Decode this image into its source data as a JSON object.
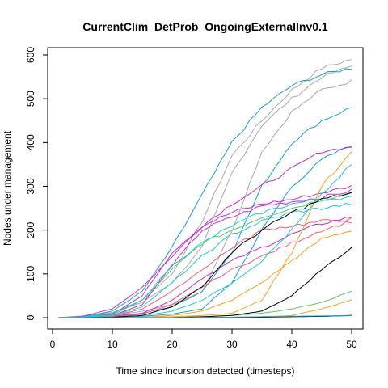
{
  "chart_data": {
    "type": "line",
    "title": "CurrentClim_DetProb_OngoingExternalInv0.1",
    "xlabel": "Time since incursion detected (timesteps)",
    "ylabel": "Nodes under management",
    "xlim": [
      1,
      50
    ],
    "ylim": [
      0,
      600
    ],
    "xticks": [
      0,
      10,
      20,
      30,
      40,
      50
    ],
    "yticks": [
      0,
      100,
      200,
      300,
      400,
      500,
      600
    ],
    "grid": false,
    "legend": "none",
    "x": [
      1,
      5,
      10,
      15,
      20,
      25,
      30,
      35,
      40,
      45,
      50
    ],
    "series": [
      {
        "color": "#aaaaaa",
        "values": [
          0,
          2,
          10,
          40,
          100,
          220,
          370,
          450,
          520,
          570,
          590
        ]
      },
      {
        "color": "#aaaaaa",
        "values": [
          0,
          4,
          12,
          35,
          80,
          160,
          330,
          440,
          500,
          550,
          575
        ]
      },
      {
        "color": "#aaaaaa",
        "values": [
          0,
          1,
          5,
          15,
          30,
          60,
          200,
          380,
          470,
          520,
          540
        ]
      },
      {
        "color": "#1a9fd6",
        "values": [
          0,
          2,
          15,
          60,
          160,
          280,
          400,
          480,
          530,
          555,
          570
        ]
      },
      {
        "color": "#1a9fd6",
        "values": [
          0,
          1,
          4,
          10,
          25,
          60,
          150,
          300,
          400,
          450,
          480
        ]
      },
      {
        "color": "#1a9fd6",
        "values": [
          0,
          0,
          1,
          3,
          8,
          20,
          80,
          200,
          300,
          360,
          395
        ]
      },
      {
        "color": "#cc2bd1",
        "values": [
          0,
          3,
          20,
          70,
          140,
          210,
          260,
          300,
          340,
          380,
          390
        ]
      },
      {
        "color": "#cc2bd1",
        "values": [
          0,
          1,
          8,
          50,
          150,
          210,
          240,
          260,
          270,
          285,
          300
        ]
      },
      {
        "color": "#cc2bd1",
        "values": [
          0,
          1,
          5,
          30,
          120,
          200,
          230,
          255,
          265,
          275,
          290
        ]
      },
      {
        "color": "#cc2bd1",
        "values": [
          0,
          0,
          2,
          10,
          40,
          90,
          130,
          160,
          190,
          215,
          230
        ]
      },
      {
        "color": "#5dc95d",
        "values": [
          0,
          1,
          6,
          40,
          110,
          170,
          200,
          230,
          250,
          270,
          285
        ]
      },
      {
        "color": "#5dc95d",
        "values": [
          0,
          0,
          0,
          0,
          1,
          2,
          5,
          10,
          20,
          35,
          60
        ]
      },
      {
        "color": "#ff9f1c",
        "values": [
          0,
          0,
          0,
          1,
          2,
          5,
          10,
          40,
          150,
          300,
          380
        ]
      },
      {
        "color": "#ff9f1c",
        "values": [
          0,
          0,
          0,
          1,
          5,
          15,
          40,
          80,
          130,
          180,
          200
        ]
      },
      {
        "color": "#ff9f1c",
        "values": [
          0,
          0,
          0,
          0,
          0,
          0,
          1,
          2,
          5,
          20,
          40
        ]
      },
      {
        "color": "#fa5b7a",
        "values": [
          0,
          1,
          4,
          20,
          60,
          110,
          160,
          200,
          210,
          220,
          225
        ]
      },
      {
        "color": "#fa5b7a",
        "values": [
          0,
          0,
          2,
          8,
          30,
          70,
          110,
          140,
          170,
          200,
          220
        ]
      },
      {
        "color": "#1ec8dc",
        "values": [
          0,
          2,
          10,
          40,
          120,
          170,
          210,
          240,
          260,
          270,
          275
        ]
      },
      {
        "color": "#1ec8dc",
        "values": [
          0,
          1,
          5,
          25,
          80,
          140,
          190,
          220,
          240,
          250,
          260
        ]
      },
      {
        "color": "#1ec8dc",
        "values": [
          0,
          0,
          1,
          4,
          15,
          40,
          80,
          130,
          200,
          280,
          350
        ]
      },
      {
        "color": "#000000",
        "values": [
          0,
          0,
          1,
          5,
          25,
          70,
          150,
          200,
          240,
          270,
          285
        ]
      },
      {
        "color": "#000000",
        "values": [
          0,
          0,
          0,
          0,
          0,
          2,
          5,
          15,
          50,
          110,
          160
        ]
      },
      {
        "color": "#000000",
        "values": [
          0,
          0,
          0,
          0,
          0,
          0,
          1,
          1,
          2,
          3,
          5
        ]
      },
      {
        "color": "#1a9fd6",
        "values": [
          0,
          0,
          0,
          0,
          0,
          1,
          1,
          2,
          3,
          4,
          5
        ]
      }
    ]
  }
}
